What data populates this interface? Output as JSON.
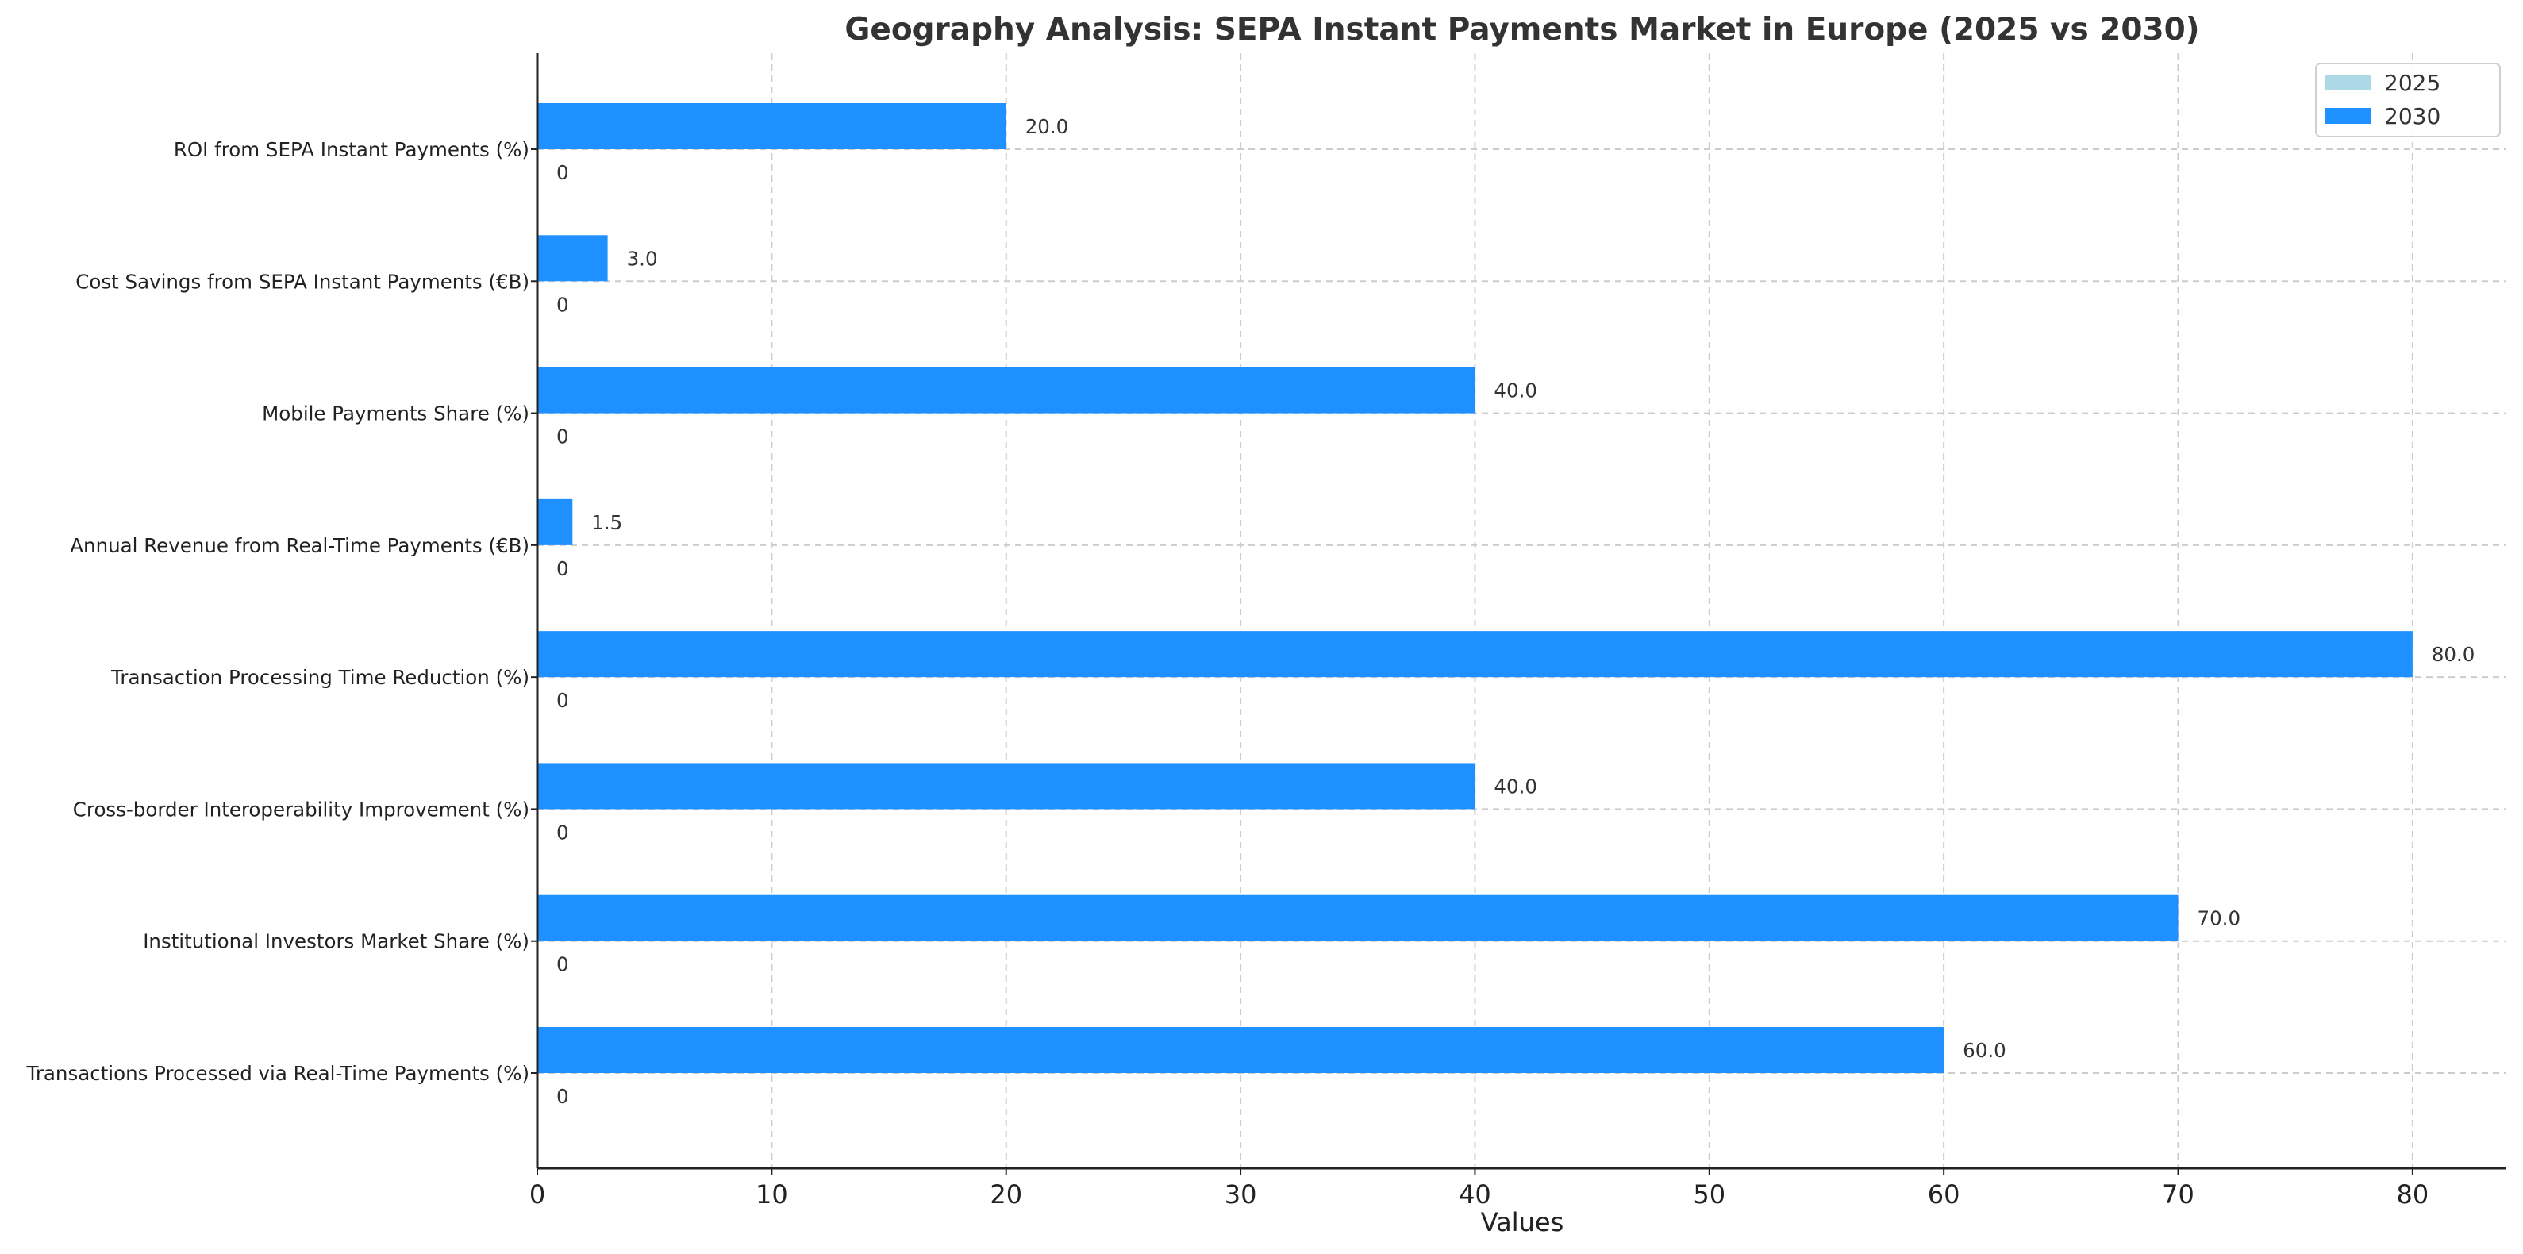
{
  "chart_data": {
    "type": "bar",
    "orientation": "horizontal",
    "title": "Geography Analysis: SEPA Instant Payments Market in Europe (2025 vs 2030)",
    "xlabel": "Values",
    "ylabel": "",
    "xlim": [
      0,
      84
    ],
    "x_ticks": [
      0,
      10,
      20,
      30,
      40,
      50,
      60,
      70,
      80
    ],
    "grid": true,
    "legend_position": "top-right",
    "categories": [
      "Transactions Processed via Real-Time Payments (%)",
      "Institutional Investors Market Share (%)",
      "Cross-border Interoperability Improvement (%)",
      "Transaction Processing Time Reduction (%)",
      "Annual Revenue from Real-Time Payments (€B)",
      "Mobile Payments Share (%)",
      "Cost Savings from SEPA Instant Payments (€B)",
      "ROI from SEPA Instant Payments (%)"
    ],
    "series": [
      {
        "name": "2025",
        "color": "#add8e6",
        "values": [
          0,
          0,
          0,
          0,
          0,
          0,
          0,
          0
        ],
        "labels": [
          "0",
          "0",
          "0",
          "0",
          "0",
          "0",
          "0",
          "0"
        ]
      },
      {
        "name": "2030",
        "color": "#1e90ff",
        "values": [
          60.0,
          70.0,
          40.0,
          80.0,
          1.5,
          40.0,
          3.0,
          20.0
        ],
        "labels": [
          "60.0",
          "70.0",
          "40.0",
          "80.0",
          "1.5",
          "40.0",
          "3.0",
          "20.0"
        ]
      }
    ]
  }
}
